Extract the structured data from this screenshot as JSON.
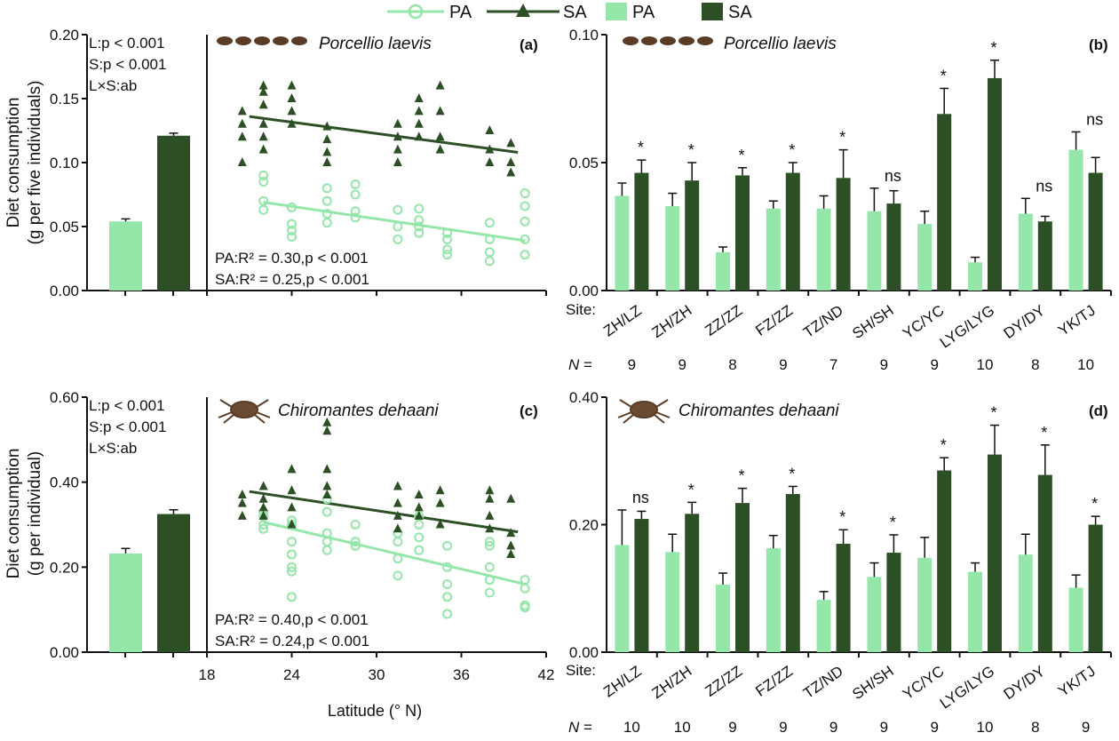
{
  "colors": {
    "pa": "#94e6a9",
    "sa": "#2d4f25",
    "axis": "#111111"
  },
  "legend": [
    {
      "label": "PA",
      "kind": "line-circle"
    },
    {
      "label": "SA",
      "kind": "line-triangle"
    },
    {
      "label": "PA",
      "kind": "bar-light"
    },
    {
      "label": "SA",
      "kind": "bar-dark"
    }
  ],
  "common": {
    "site_label": "Site:",
    "n_label": "N =",
    "xlabel": "Latitude (° N)",
    "ylabel_top_1": "Diet consumption",
    "ylabel_top_2": "(g per five individuals)",
    "ylabel_bottom_1": "Diet consumption",
    "ylabel_bottom_2": "(g per individual)"
  },
  "chart_data": [
    {
      "panel": "(a)",
      "species": "Porcellio laevis",
      "type": "bar+scatter",
      "ylim": [
        0,
        0.2
      ],
      "yticks": [
        "0.00",
        "0.05",
        "0.10",
        "0.15",
        "0.20"
      ],
      "anova": [
        "L:p < 0.001",
        "S:p < 0.001",
        "L×S:ab"
      ],
      "bars": [
        {
          "name": "PA",
          "value": 0.054,
          "se": 0.002
        },
        {
          "name": "SA",
          "value": 0.121,
          "se": 0.002
        }
      ],
      "regression": [
        "PA:R² = 0.30,p < 0.001",
        "SA:R² = 0.25,p < 0.001"
      ],
      "xlim": [
        18,
        42
      ],
      "scatter_sa": [
        [
          20.5,
          0.14
        ],
        [
          20.5,
          0.13
        ],
        [
          20.5,
          0.12
        ],
        [
          20.5,
          0.1
        ],
        [
          22,
          0.16
        ],
        [
          22,
          0.155
        ],
        [
          22,
          0.145
        ],
        [
          22,
          0.13
        ],
        [
          22,
          0.12
        ],
        [
          22,
          0.11
        ],
        [
          24,
          0.16
        ],
        [
          24,
          0.15
        ],
        [
          24,
          0.14
        ],
        [
          24,
          0.13
        ],
        [
          26.5,
          0.128
        ],
        [
          26.5,
          0.118
        ],
        [
          26.5,
          0.108
        ],
        [
          26.5,
          0.1
        ],
        [
          31.5,
          0.13
        ],
        [
          31.5,
          0.12
        ],
        [
          31.5,
          0.11
        ],
        [
          31.5,
          0.1
        ],
        [
          33,
          0.15
        ],
        [
          33,
          0.14
        ],
        [
          33,
          0.13
        ],
        [
          33,
          0.12
        ],
        [
          34.5,
          0.16
        ],
        [
          34.5,
          0.14
        ],
        [
          34.5,
          0.12
        ],
        [
          34.5,
          0.11
        ],
        [
          38,
          0.125
        ],
        [
          38,
          0.11
        ],
        [
          38,
          0.1
        ],
        [
          39.5,
          0.115
        ],
        [
          39.5,
          0.1
        ],
        [
          39.5,
          0.092
        ]
      ],
      "scatter_pa": [
        [
          22,
          0.09
        ],
        [
          22,
          0.085
        ],
        [
          22,
          0.07
        ],
        [
          22,
          0.063
        ],
        [
          24,
          0.065
        ],
        [
          24,
          0.052
        ],
        [
          24,
          0.047
        ],
        [
          24,
          0.042
        ],
        [
          26.5,
          0.08
        ],
        [
          26.5,
          0.07
        ],
        [
          26.5,
          0.06
        ],
        [
          26.5,
          0.053
        ],
        [
          28.5,
          0.083
        ],
        [
          28.5,
          0.075
        ],
        [
          28.5,
          0.062
        ],
        [
          28.5,
          0.057
        ],
        [
          31.5,
          0.063
        ],
        [
          31.5,
          0.05
        ],
        [
          31.5,
          0.04
        ],
        [
          33,
          0.064
        ],
        [
          33,
          0.055
        ],
        [
          33,
          0.05
        ],
        [
          33,
          0.045
        ],
        [
          35,
          0.045
        ],
        [
          35,
          0.04
        ],
        [
          35,
          0.032
        ],
        [
          35,
          0.028
        ],
        [
          38,
          0.053
        ],
        [
          38,
          0.04
        ],
        [
          38,
          0.03
        ],
        [
          38,
          0.023
        ],
        [
          40.5,
          0.076
        ],
        [
          40.5,
          0.066
        ],
        [
          40.5,
          0.054
        ],
        [
          40.5,
          0.04
        ],
        [
          40.5,
          0.028
        ]
      ],
      "fit_sa": [
        [
          21,
          0.136
        ],
        [
          40,
          0.108
        ]
      ],
      "fit_pa": [
        [
          22,
          0.069
        ],
        [
          40.5,
          0.039
        ]
      ]
    },
    {
      "panel": "(b)",
      "species": "Porcellio laevis",
      "type": "bar",
      "ylim": [
        0,
        0.1
      ],
      "yticks": [
        "0.00",
        "0.05",
        "0.10"
      ],
      "categories": [
        "ZH/LZ",
        "ZH/ZH",
        "ZZ/ZZ",
        "FZ/ZZ",
        "TZ/ND",
        "SH/SH",
        "YC/YC",
        "LYG/LYG",
        "DY/DY",
        "YK/TJ"
      ],
      "n": [
        "9",
        "9",
        "8",
        "9",
        "7",
        "9",
        "9",
        "10",
        "8",
        "10"
      ],
      "sig": [
        "*",
        "*",
        "*",
        "*",
        "*",
        "ns",
        "*",
        "*",
        "ns",
        "ns"
      ],
      "series": [
        {
          "name": "PA",
          "values": [
            0.037,
            0.033,
            0.015,
            0.032,
            0.032,
            0.031,
            0.026,
            0.011,
            0.03,
            0.055
          ],
          "se": [
            0.005,
            0.005,
            0.002,
            0.003,
            0.005,
            0.009,
            0.005,
            0.002,
            0.006,
            0.007
          ]
        },
        {
          "name": "SA",
          "values": [
            0.046,
            0.043,
            0.045,
            0.046,
            0.044,
            0.034,
            0.069,
            0.083,
            0.027,
            0.046
          ],
          "se": [
            0.005,
            0.007,
            0.003,
            0.004,
            0.011,
            0.005,
            0.01,
            0.007,
            0.002,
            0.006
          ]
        }
      ]
    },
    {
      "panel": "(c)",
      "species": "Chiromantes dehaani",
      "type": "bar+scatter",
      "ylim": [
        0,
        0.6
      ],
      "yticks": [
        "0.00",
        "0.20",
        "0.40",
        "0.60"
      ],
      "xticks": [
        "18",
        "24",
        "30",
        "36",
        "42"
      ],
      "anova": [
        "L:p < 0.001",
        "S:p < 0.001",
        "L×S:ab"
      ],
      "bars": [
        {
          "name": "PA",
          "value": 0.232,
          "se": 0.012
        },
        {
          "name": "SA",
          "value": 0.325,
          "se": 0.01
        }
      ],
      "regression": [
        "PA:R² = 0.40,p < 0.001",
        "SA:R² = 0.24,p < 0.001"
      ],
      "xlim": [
        18,
        42
      ],
      "scatter_sa": [
        [
          20.5,
          0.37
        ],
        [
          20.5,
          0.35
        ],
        [
          20.5,
          0.32
        ],
        [
          22,
          0.39
        ],
        [
          22,
          0.36
        ],
        [
          22,
          0.34
        ],
        [
          22,
          0.32
        ],
        [
          24,
          0.43
        ],
        [
          24,
          0.38
        ],
        [
          24,
          0.34
        ],
        [
          24,
          0.3
        ],
        [
          26.5,
          0.54
        ],
        [
          26.5,
          0.52
        ],
        [
          26.5,
          0.43
        ],
        [
          26.5,
          0.39
        ],
        [
          26.5,
          0.37
        ],
        [
          31.5,
          0.39
        ],
        [
          31.5,
          0.35
        ],
        [
          31.5,
          0.32
        ],
        [
          31.5,
          0.29
        ],
        [
          33,
          0.37
        ],
        [
          33,
          0.34
        ],
        [
          33,
          0.32
        ],
        [
          34.5,
          0.38
        ],
        [
          34.5,
          0.35
        ],
        [
          34.5,
          0.3
        ],
        [
          38,
          0.38
        ],
        [
          38,
          0.36
        ],
        [
          38,
          0.32
        ],
        [
          38,
          0.29
        ],
        [
          39.5,
          0.36
        ],
        [
          39.5,
          0.28
        ],
        [
          39.5,
          0.25
        ],
        [
          39.5,
          0.23
        ]
      ],
      "scatter_pa": [
        [
          22,
          0.33
        ],
        [
          22,
          0.32
        ],
        [
          22,
          0.3
        ],
        [
          22,
          0.29
        ],
        [
          24,
          0.31
        ],
        [
          24,
          0.3
        ],
        [
          24,
          0.26
        ],
        [
          24,
          0.23
        ],
        [
          24,
          0.2
        ],
        [
          24,
          0.19
        ],
        [
          24,
          0.13
        ],
        [
          26.5,
          0.36
        ],
        [
          26.5,
          0.33
        ],
        [
          26.5,
          0.28
        ],
        [
          26.5,
          0.26
        ],
        [
          26.5,
          0.24
        ],
        [
          28.5,
          0.3
        ],
        [
          28.5,
          0.26
        ],
        [
          28.5,
          0.25
        ],
        [
          31.5,
          0.28
        ],
        [
          31.5,
          0.26
        ],
        [
          31.5,
          0.22
        ],
        [
          31.5,
          0.18
        ],
        [
          33,
          0.32
        ],
        [
          33,
          0.3
        ],
        [
          33,
          0.27
        ],
        [
          33,
          0.24
        ],
        [
          35,
          0.25
        ],
        [
          35,
          0.2
        ],
        [
          35,
          0.16
        ],
        [
          35,
          0.13
        ],
        [
          35,
          0.09
        ],
        [
          38,
          0.26
        ],
        [
          38,
          0.25
        ],
        [
          38,
          0.2
        ],
        [
          38,
          0.17
        ],
        [
          38,
          0.14
        ],
        [
          40.5,
          0.17
        ],
        [
          40.5,
          0.15
        ],
        [
          40.5,
          0.11
        ],
        [
          40.5,
          0.105
        ]
      ],
      "fit_sa": [
        [
          21,
          0.378
        ],
        [
          40,
          0.283
        ]
      ],
      "fit_pa": [
        [
          22,
          0.306
        ],
        [
          40.5,
          0.16
        ]
      ]
    },
    {
      "panel": "(d)",
      "species": "Chiromantes dehaani",
      "type": "bar",
      "ylim": [
        0,
        0.4
      ],
      "yticks": [
        "0.00",
        "0.20",
        "0.40"
      ],
      "categories": [
        "ZH/LZ",
        "ZH/ZH",
        "ZZ/ZZ",
        "FZ/ZZ",
        "TZ/ND",
        "SH/SH",
        "YC/YC",
        "LYG/LYG",
        "DY/DY",
        "YK/TJ"
      ],
      "n": [
        "10",
        "10",
        "9",
        "9",
        "9",
        "9",
        "9",
        "10",
        "8",
        "9"
      ],
      "sig": [
        "ns",
        "*",
        "*",
        "*",
        "*",
        "*",
        "*",
        "*",
        "*",
        "*"
      ],
      "series": [
        {
          "name": "PA",
          "values": [
            0.168,
            0.157,
            0.106,
            0.163,
            0.082,
            0.118,
            0.148,
            0.126,
            0.153,
            0.101
          ],
          "se": [
            0.055,
            0.028,
            0.018,
            0.02,
            0.013,
            0.022,
            0.032,
            0.014,
            0.032,
            0.02
          ]
        },
        {
          "name": "SA",
          "values": [
            0.209,
            0.217,
            0.234,
            0.248,
            0.17,
            0.156,
            0.285,
            0.31,
            0.278,
            0.2
          ],
          "se": [
            0.012,
            0.018,
            0.023,
            0.012,
            0.022,
            0.028,
            0.02,
            0.046,
            0.047,
            0.013
          ]
        }
      ]
    }
  ]
}
